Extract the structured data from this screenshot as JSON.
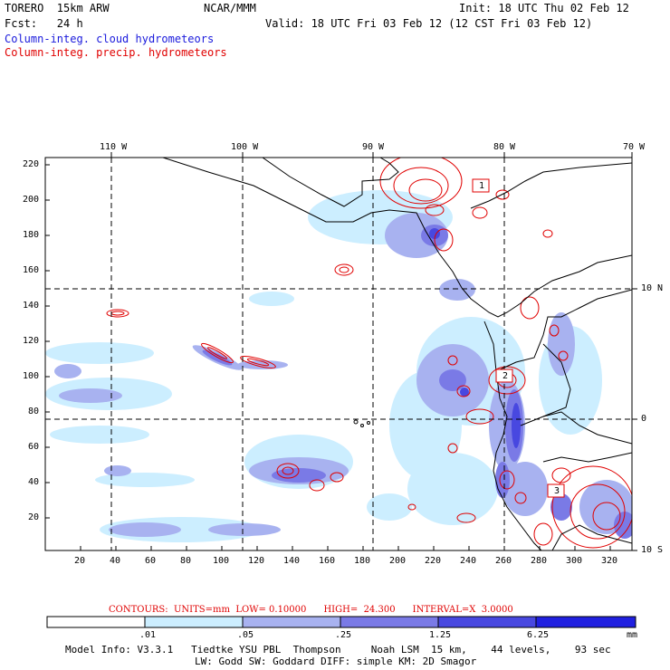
{
  "header": {
    "model": "TORERO  15km ARW",
    "org": "NCAR/MMM",
    "init": "Init: 18 UTC Thu 02 Feb 12",
    "fcst": "Fcst:   24 h",
    "valid": "Valid: 18 UTC Fri 03 Feb 12 (12 CST Fri 03 Feb 12)",
    "legend_cloud": "Column-integ. cloud hydrometeors",
    "legend_precip": "Column-integ. precip. hydrometeors"
  },
  "colors": {
    "cloud_light": "#cceeff",
    "cloud_mid": "#a8b2f0",
    "cloud_dark": "#7a7ae6",
    "cloud_deep": "#4848e0",
    "precip": "#e00000",
    "coast": "#000000"
  },
  "map": {
    "lon_labels": [
      "110 W",
      "100 W",
      "90 W",
      "80 W",
      "70 W"
    ],
    "lat_labels": [
      "10 N",
      "0",
      "10 S"
    ],
    "x_ticks": [
      "20",
      "40",
      "60",
      "80",
      "100",
      "120",
      "140",
      "160",
      "180",
      "200",
      "220",
      "240",
      "260",
      "280",
      "300",
      "320"
    ],
    "y_ticks": [
      "220",
      "200",
      "180",
      "160",
      "140",
      "120",
      "100",
      "80",
      "60",
      "40",
      "20"
    ],
    "box_labels": [
      "1",
      "2",
      "3"
    ]
  },
  "contours_line": "CONTOURS:  UNITS=mm  LOW= 0.10000      HIGH=  24.300      INTERVAL=X  3.0000",
  "colorbar": {
    "labels": [
      ".01",
      ".05",
      ".25",
      "1.25",
      "6.25"
    ],
    "unit": "mm",
    "colors": [
      "#ffffff",
      "#cceeff",
      "#a8b2f0",
      "#7a7ae6",
      "#4848e0",
      "#2020e0"
    ]
  },
  "footer": {
    "line1": "Model Info: V3.3.1   Tiedtke YSU PBL  Thompson     Noah LSM  15 km,    44 levels,    93 sec",
    "line2": "LW: Godd SW: Goddard DIFF: simple KM: 2D Smagor"
  }
}
